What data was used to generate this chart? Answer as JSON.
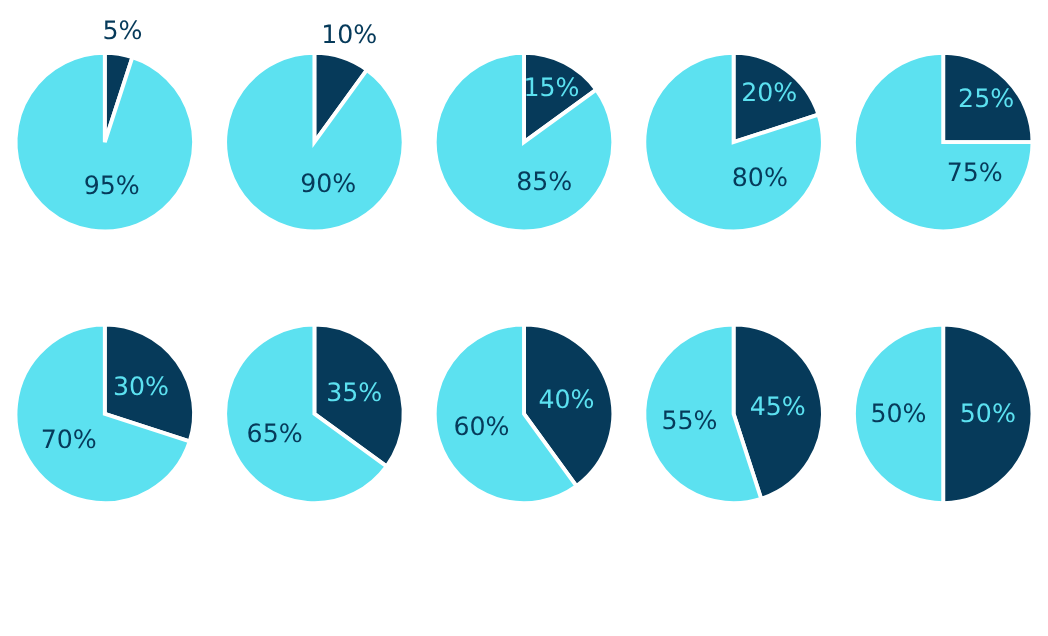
{
  "chart_data": [
    {
      "type": "pie",
      "categories": [
        null,
        null
      ],
      "values": [
        5,
        95
      ],
      "colors": [
        "#063a5a",
        "#5ce1f0"
      ],
      "value_labels": [
        "5%",
        "95%"
      ]
    },
    {
      "type": "pie",
      "categories": [
        null,
        null
      ],
      "values": [
        10,
        90
      ],
      "colors": [
        "#063a5a",
        "#5ce1f0"
      ],
      "value_labels": [
        "10%",
        "90%"
      ]
    },
    {
      "type": "pie",
      "categories": [
        null,
        null
      ],
      "values": [
        15,
        85
      ],
      "colors": [
        "#063a5a",
        "#5ce1f0"
      ],
      "value_labels": [
        "15%",
        "85%"
      ]
    },
    {
      "type": "pie",
      "categories": [
        null,
        null
      ],
      "values": [
        20,
        80
      ],
      "colors": [
        "#063a5a",
        "#5ce1f0"
      ],
      "value_labels": [
        "20%",
        "80%"
      ]
    },
    {
      "type": "pie",
      "categories": [
        null,
        null
      ],
      "values": [
        25,
        75
      ],
      "colors": [
        "#063a5a",
        "#5ce1f0"
      ],
      "value_labels": [
        "25%",
        "75%"
      ]
    },
    {
      "type": "pie",
      "categories": [
        null,
        null
      ],
      "values": [
        30,
        70
      ],
      "colors": [
        "#063a5a",
        "#5ce1f0"
      ],
      "value_labels": [
        "30%",
        "70%"
      ]
    },
    {
      "type": "pie",
      "categories": [
        null,
        null
      ],
      "values": [
        35,
        65
      ],
      "colors": [
        "#063a5a",
        "#5ce1f0"
      ],
      "value_labels": [
        "35%",
        "65%"
      ]
    },
    {
      "type": "pie",
      "categories": [
        null,
        null
      ],
      "values": [
        40,
        60
      ],
      "colors": [
        "#063a5a",
        "#5ce1f0"
      ],
      "value_labels": [
        "40%",
        "60%"
      ]
    },
    {
      "type": "pie",
      "categories": [
        null,
        null
      ],
      "values": [
        45,
        55
      ],
      "colors": [
        "#063a5a",
        "#5ce1f0"
      ],
      "value_labels": [
        "45%",
        "55%"
      ]
    },
    {
      "type": "pie",
      "categories": [
        null,
        null
      ],
      "values": [
        50,
        50
      ],
      "colors": [
        "#063a5a",
        "#5ce1f0"
      ],
      "value_labels": [
        "50%",
        "50%"
      ]
    }
  ]
}
